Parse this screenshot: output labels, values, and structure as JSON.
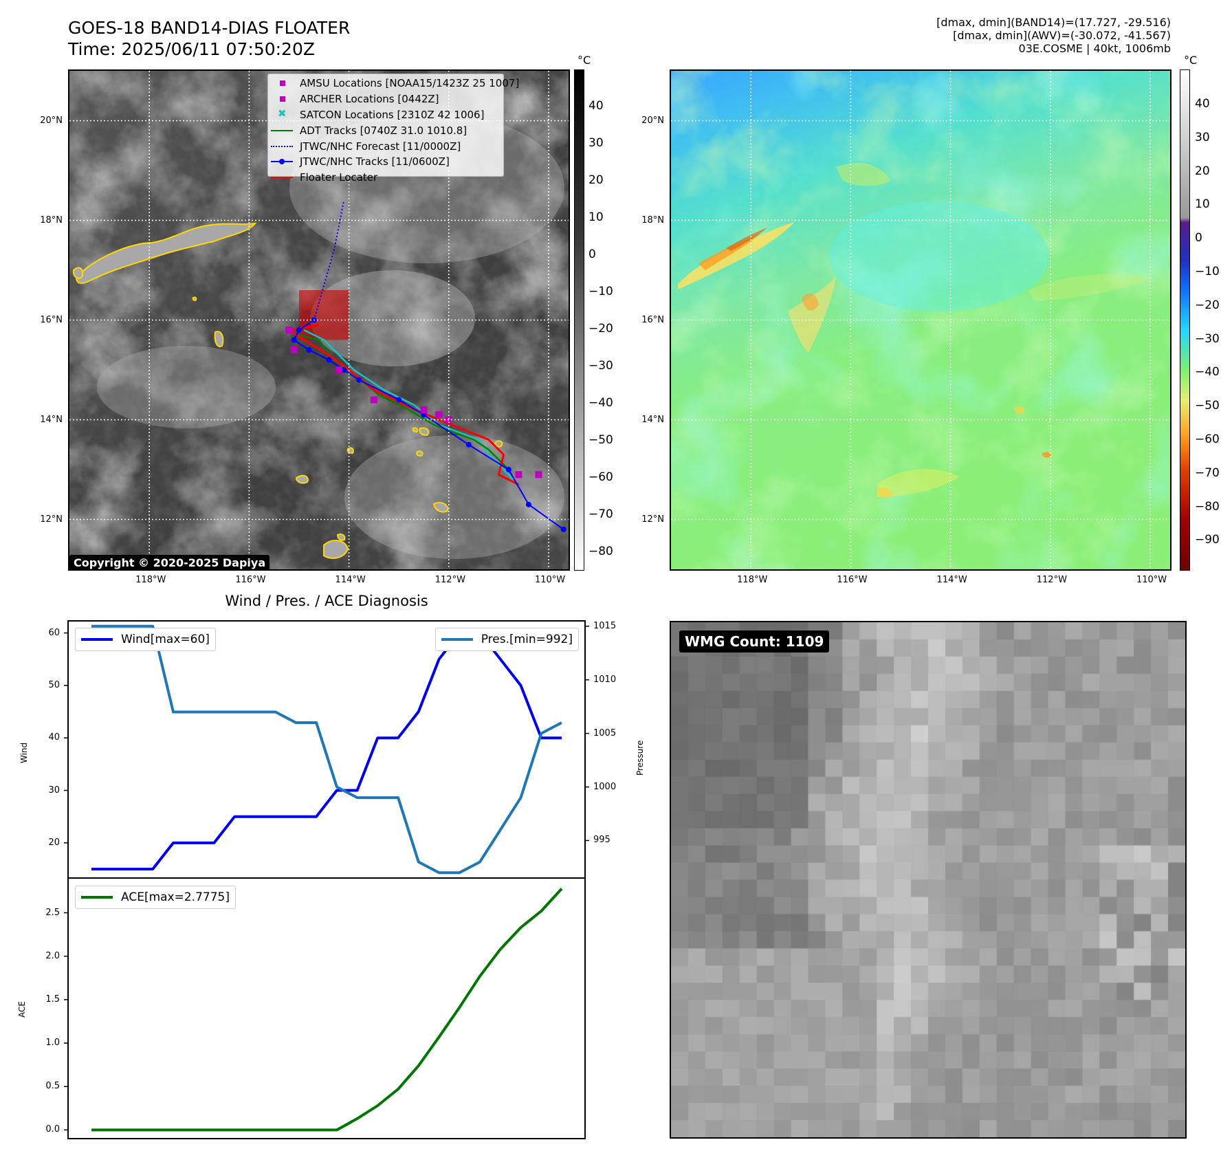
{
  "header": {
    "title": "GOES-18 BAND14-DIAS FLOATER",
    "time": "Time: 2025/06/11 07:50:20Z",
    "stats": [
      "[dmax, dmin](BAND14)=(17.727, -29.516)",
      "[dmax, dmin](AWV)=(-30.072, -41.567)",
      "03E.COSME | 40kt, 1006mb"
    ]
  },
  "map_left": {
    "copyright": "Copyright © 2020-2025 Dapiya",
    "lat_labels": [
      "20°N",
      "18°N",
      "16°N",
      "14°N",
      "12°N"
    ],
    "lon_labels": [
      "118°W",
      "116°W",
      "114°W",
      "112°W",
      "110°W"
    ],
    "colorbar_unit": "°C",
    "colorbar_ticks": [
      "40",
      "30",
      "20",
      "10",
      "0",
      "−10",
      "−20",
      "−30",
      "−40",
      "−50",
      "−60",
      "−70",
      "−80"
    ],
    "legend": [
      {
        "label": "AMSU Locations [NOAA15/1423Z 25 1007]",
        "color": "#c000c0",
        "marker": "square"
      },
      {
        "label": "ARCHER Locations [0442Z]",
        "color": "#c000c0",
        "marker": "square"
      },
      {
        "label": "SATCON Locations [2310Z 42 1006]",
        "color": "#20c0c0",
        "marker": "x"
      },
      {
        "label": "ADT Tracks [0740Z 31.0 1010.8]",
        "color": "#008000",
        "marker": "line"
      },
      {
        "label": "JTWC/NHC Forecast [11/0000Z]",
        "color": "#0000ff",
        "marker": "dotted"
      },
      {
        "label": "JTWC/NHC Tracks [11/0600Z]",
        "color": "#0000ff",
        "marker": "line-dot"
      },
      {
        "label": "Floater Locater",
        "color": "#ff0000",
        "marker": "line"
      }
    ],
    "tracks": {
      "jtwc_track": [
        [
          -109.7,
          11.8
        ],
        [
          -110.4,
          12.3
        ],
        [
          -110.8,
          13.0
        ],
        [
          -111.6,
          13.5
        ],
        [
          -112.5,
          14.1
        ],
        [
          -113.0,
          14.4
        ],
        [
          -113.8,
          14.8
        ],
        [
          -114.1,
          15.0
        ],
        [
          -114.4,
          15.2
        ],
        [
          -114.8,
          15.4
        ],
        [
          -115.1,
          15.6
        ],
        [
          -115.0,
          15.8
        ],
        [
          -114.7,
          16.0
        ]
      ],
      "jtwc_forecast": [
        [
          -114.7,
          16.0
        ],
        [
          -114.5,
          16.7
        ],
        [
          -114.3,
          17.4
        ],
        [
          -114.1,
          18.4
        ]
      ],
      "adt_track": [
        [
          -110.8,
          13.0
        ],
        [
          -111.2,
          13.4
        ],
        [
          -111.5,
          13.6
        ],
        [
          -112.3,
          13.9
        ],
        [
          -112.8,
          14.2
        ],
        [
          -113.4,
          14.5
        ],
        [
          -114.0,
          15.0
        ],
        [
          -114.3,
          15.2
        ],
        [
          -114.6,
          15.6
        ],
        [
          -115.0,
          15.7
        ]
      ],
      "satcon_track": [
        [
          -110.7,
          12.8
        ],
        [
          -111.2,
          13.3
        ],
        [
          -111.4,
          13.6
        ],
        [
          -112.2,
          13.9
        ],
        [
          -112.7,
          14.3
        ],
        [
          -113.3,
          14.6
        ],
        [
          -113.9,
          15.0
        ],
        [
          -114.2,
          15.3
        ],
        [
          -114.5,
          15.6
        ],
        [
          -114.9,
          15.8
        ]
      ],
      "floater_track": [
        [
          -110.6,
          12.7
        ],
        [
          -111.0,
          12.9
        ],
        [
          -110.9,
          13.3
        ],
        [
          -111.2,
          13.6
        ],
        [
          -112.2,
          14.0
        ],
        [
          -112.9,
          14.3
        ],
        [
          -113.5,
          14.6
        ],
        [
          -114.0,
          15.0
        ],
        [
          -114.4,
          15.3
        ],
        [
          -114.9,
          15.6
        ],
        [
          -115.2,
          15.8
        ],
        [
          -114.6,
          15.9
        ]
      ],
      "amsu_points": [
        [
          -115.2,
          15.8
        ],
        [
          -115.1,
          15.4
        ],
        [
          -114.2,
          15.0
        ],
        [
          -113.5,
          14.4
        ],
        [
          -112.5,
          14.2
        ],
        [
          -112.2,
          14.1
        ],
        [
          -112.0,
          14.0
        ],
        [
          -110.6,
          12.9
        ],
        [
          -110.2,
          12.9
        ]
      ],
      "floater_box": {
        "lon_min": -115.0,
        "lon_max": -114.0,
        "lat_min": 15.6,
        "lat_max": 16.6
      }
    }
  },
  "map_right": {
    "lat_labels": [
      "20°N",
      "18°N",
      "16°N",
      "14°N",
      "12°N"
    ],
    "lon_labels": [
      "118°W",
      "116°W",
      "114°W",
      "112°W",
      "110°W"
    ],
    "colorbar_unit": "°C",
    "colorbar_ticks": [
      "40",
      "30",
      "20",
      "10",
      "0",
      "−10",
      "−20",
      "−30",
      "−40",
      "−50",
      "−60",
      "−70",
      "−80",
      "−90"
    ]
  },
  "wmg": {
    "badge": "WMG Count: 1109"
  },
  "chart_data": [
    {
      "type": "line",
      "title": "Wind / Pres. / ACE Diagnosis",
      "x_count": 24,
      "series": [
        {
          "name": "Wind[max=60]",
          "axis": "left",
          "color": "#0000ee",
          "values": [
            15,
            15,
            15,
            15,
            20,
            20,
            20,
            25,
            25,
            25,
            25,
            25,
            30,
            30,
            40,
            40,
            45,
            55,
            60,
            60,
            55,
            50,
            40,
            40
          ]
        },
        {
          "name": "Pres.[min=992]",
          "axis": "right",
          "color": "#1f77b4",
          "values": [
            1015,
            1015,
            1015,
            1015,
            1007,
            1007,
            1007,
            1007,
            1007,
            1007,
            1006,
            1006,
            1000,
            999,
            999,
            999,
            993,
            992,
            992,
            993,
            996,
            999,
            1005,
            1006
          ]
        }
      ],
      "ylabel": "Wind",
      "ylabel_right": "Pressure",
      "ylim": [
        13.3,
        62.3
      ],
      "ylim_right": [
        991.5,
        1015.5
      ],
      "yticks": [
        20,
        30,
        40,
        50,
        60
      ],
      "yticks_right": [
        995,
        1000,
        1005,
        1010,
        1015
      ]
    },
    {
      "type": "line",
      "x_count": 24,
      "series": [
        {
          "name": "ACE[max=2.7775]",
          "axis": "left",
          "color": "#007700",
          "values": [
            0,
            0,
            0,
            0,
            0,
            0,
            0,
            0,
            0,
            0,
            0,
            0,
            0,
            0.13,
            0.28,
            0.47,
            0.74,
            1.07,
            1.41,
            1.77,
            2.08,
            2.33,
            2.52,
            2.7775
          ]
        }
      ],
      "ylabel": "ACE",
      "ylim": [
        -0.1,
        2.9
      ],
      "yticks": [
        0.0,
        0.5,
        1.0,
        1.5,
        2.0,
        2.5
      ]
    }
  ]
}
